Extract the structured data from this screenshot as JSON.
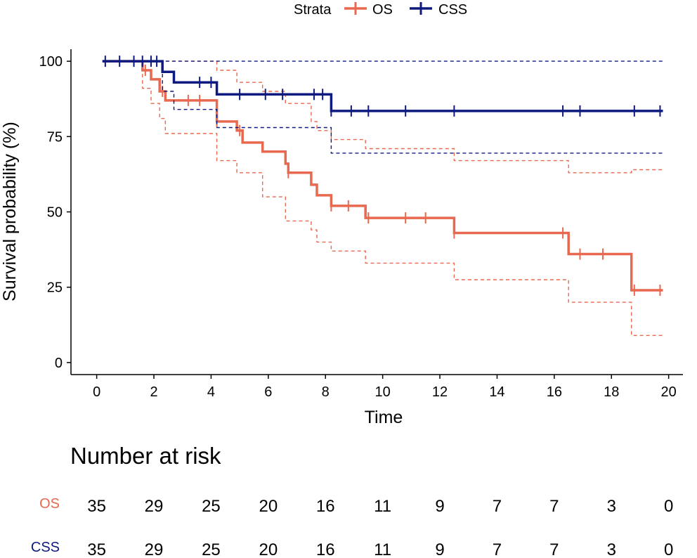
{
  "chart_data": {
    "type": "line",
    "subtype": "kaplan-meier",
    "xlabel": "Time",
    "ylabel": "Survival probability (%)",
    "xlim": [
      -0.9,
      20.5
    ],
    "ylim": [
      -4,
      104
    ],
    "x_ticks": [
      0,
      2,
      4,
      6,
      8,
      10,
      12,
      14,
      16,
      18,
      20
    ],
    "y_ticks": [
      0,
      25,
      50,
      75,
      100
    ],
    "legend": {
      "title": "Strata",
      "position": "top",
      "entries": [
        "OS",
        "CSS"
      ]
    },
    "series": [
      {
        "name": "OS",
        "color": "#E8694F",
        "steps": [
          [
            0.2,
            100
          ],
          [
            1.6,
            100
          ],
          [
            1.6,
            97
          ],
          [
            1.9,
            97
          ],
          [
            1.9,
            94
          ],
          [
            2.2,
            94
          ],
          [
            2.2,
            90
          ],
          [
            2.4,
            90
          ],
          [
            2.4,
            87
          ],
          [
            4.2,
            87
          ],
          [
            4.2,
            80
          ],
          [
            4.9,
            80
          ],
          [
            4.9,
            77
          ],
          [
            5.1,
            77
          ],
          [
            5.1,
            73
          ],
          [
            5.8,
            73
          ],
          [
            5.8,
            70
          ],
          [
            6.6,
            70
          ],
          [
            6.6,
            66
          ],
          [
            6.7,
            66
          ],
          [
            6.7,
            63
          ],
          [
            7.5,
            63
          ],
          [
            7.5,
            59
          ],
          [
            7.7,
            59
          ],
          [
            7.7,
            55.5
          ],
          [
            8.2,
            55.5
          ],
          [
            8.2,
            52
          ],
          [
            9.4,
            52
          ],
          [
            9.4,
            48
          ],
          [
            12.5,
            48
          ],
          [
            12.5,
            43
          ],
          [
            16.5,
            43
          ],
          [
            16.5,
            36
          ],
          [
            18.7,
            36
          ],
          [
            18.7,
            24
          ],
          [
            19.8,
            24
          ]
        ],
        "lower_ci": [
          [
            1.6,
            100
          ],
          [
            1.6,
            91
          ],
          [
            1.9,
            91
          ],
          [
            1.9,
            86
          ],
          [
            2.2,
            86
          ],
          [
            2.2,
            81
          ],
          [
            2.4,
            81
          ],
          [
            2.4,
            76
          ],
          [
            4.2,
            76
          ],
          [
            4.2,
            67
          ],
          [
            4.9,
            67
          ],
          [
            4.9,
            63
          ],
          [
            5.8,
            63
          ],
          [
            5.8,
            59
          ],
          [
            5.8,
            59
          ],
          [
            5.8,
            55
          ],
          [
            6.6,
            55
          ],
          [
            6.6,
            47
          ],
          [
            7.5,
            47
          ],
          [
            7.5,
            44
          ],
          [
            7.7,
            44
          ],
          [
            7.7,
            40
          ],
          [
            8.2,
            40
          ],
          [
            8.2,
            37
          ],
          [
            9.4,
            37
          ],
          [
            9.4,
            33
          ],
          [
            12.5,
            33
          ],
          [
            12.5,
            27.5
          ],
          [
            16.5,
            27.5
          ],
          [
            16.5,
            20
          ],
          [
            18.7,
            20
          ],
          [
            18.7,
            9
          ],
          [
            19.8,
            9
          ]
        ],
        "upper_ci": [
          [
            2.2,
            100
          ],
          [
            4.2,
            100
          ],
          [
            4.2,
            97
          ],
          [
            4.9,
            97
          ],
          [
            4.9,
            93
          ],
          [
            5.8,
            93
          ],
          [
            5.8,
            90
          ],
          [
            6.6,
            90
          ],
          [
            6.6,
            86
          ],
          [
            7.5,
            86
          ],
          [
            7.5,
            80
          ],
          [
            7.7,
            80
          ],
          [
            7.7,
            77
          ],
          [
            8.2,
            77
          ],
          [
            8.2,
            74
          ],
          [
            9.4,
            74
          ],
          [
            9.4,
            71
          ],
          [
            12.5,
            71
          ],
          [
            12.5,
            67
          ],
          [
            16.5,
            67
          ],
          [
            16.5,
            63
          ],
          [
            18.7,
            63
          ],
          [
            18.7,
            64
          ],
          [
            19.8,
            64
          ]
        ],
        "censored": [
          1.7,
          2.3,
          3.2,
          3.6,
          4.2,
          5.0,
          6.7,
          8.2,
          8.8,
          9.5,
          10.8,
          11.5,
          12.5,
          16.3,
          16.9,
          17.7,
          18.8,
          19.7
        ]
      },
      {
        "name": "CSS",
        "color": "#0E1A7F",
        "steps": [
          [
            0.2,
            100
          ],
          [
            2.3,
            100
          ],
          [
            2.3,
            96.5
          ],
          [
            2.7,
            96.5
          ],
          [
            2.7,
            93
          ],
          [
            4.2,
            93
          ],
          [
            4.2,
            89
          ],
          [
            8.2,
            89
          ],
          [
            8.2,
            83.5
          ],
          [
            19.8,
            83.5
          ]
        ],
        "lower_ci": [
          [
            2.3,
            100
          ],
          [
            2.3,
            90
          ],
          [
            2.7,
            90
          ],
          [
            2.7,
            84
          ],
          [
            4.2,
            84
          ],
          [
            4.2,
            78
          ],
          [
            8.2,
            78
          ],
          [
            8.2,
            69.5
          ],
          [
            19.8,
            69.5
          ]
        ],
        "upper_ci": [
          [
            0.2,
            100
          ],
          [
            19.8,
            100
          ]
        ],
        "censored": [
          0.3,
          0.8,
          1.3,
          1.6,
          1.9,
          2.1,
          3.6,
          4.0,
          5.0,
          5.9,
          6.5,
          7.6,
          7.9,
          8.2,
          8.9,
          9.5,
          10.8,
          12.5,
          16.3,
          16.9,
          18.8,
          19.7
        ]
      }
    ],
    "risk_table": {
      "title": "Number at risk",
      "times": [
        0,
        2,
        4,
        6,
        8,
        10,
        12,
        14,
        16,
        18,
        20
      ],
      "rows": [
        {
          "label": "OS",
          "color": "#E8694F",
          "values": [
            35,
            29,
            25,
            20,
            16,
            11,
            9,
            7,
            7,
            3,
            0
          ]
        },
        {
          "label": "CSS",
          "color": "#0E1A7F",
          "values": [
            35,
            29,
            25,
            20,
            16,
            11,
            9,
            7,
            7,
            3,
            0
          ]
        }
      ]
    }
  }
}
